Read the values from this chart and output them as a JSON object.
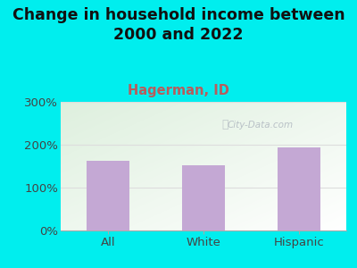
{
  "title": "Change in household income between\n2000 and 2022",
  "subtitle": "Hagerman, ID",
  "categories": [
    "All",
    "White",
    "Hispanic"
  ],
  "values": [
    163,
    152,
    193
  ],
  "bar_color": "#c4a8d4",
  "title_fontsize": 12.5,
  "subtitle_fontsize": 10.5,
  "subtitle_color": "#b85c5c",
  "title_color": "#111111",
  "background_outer": "#00eeee",
  "ylim": [
    0,
    300
  ],
  "yticks": [
    0,
    100,
    200,
    300
  ],
  "ytick_labels": [
    "0%",
    "100%",
    "200%",
    "300%"
  ],
  "watermark": "City-Data.com",
  "grid_color": "#dddddd"
}
